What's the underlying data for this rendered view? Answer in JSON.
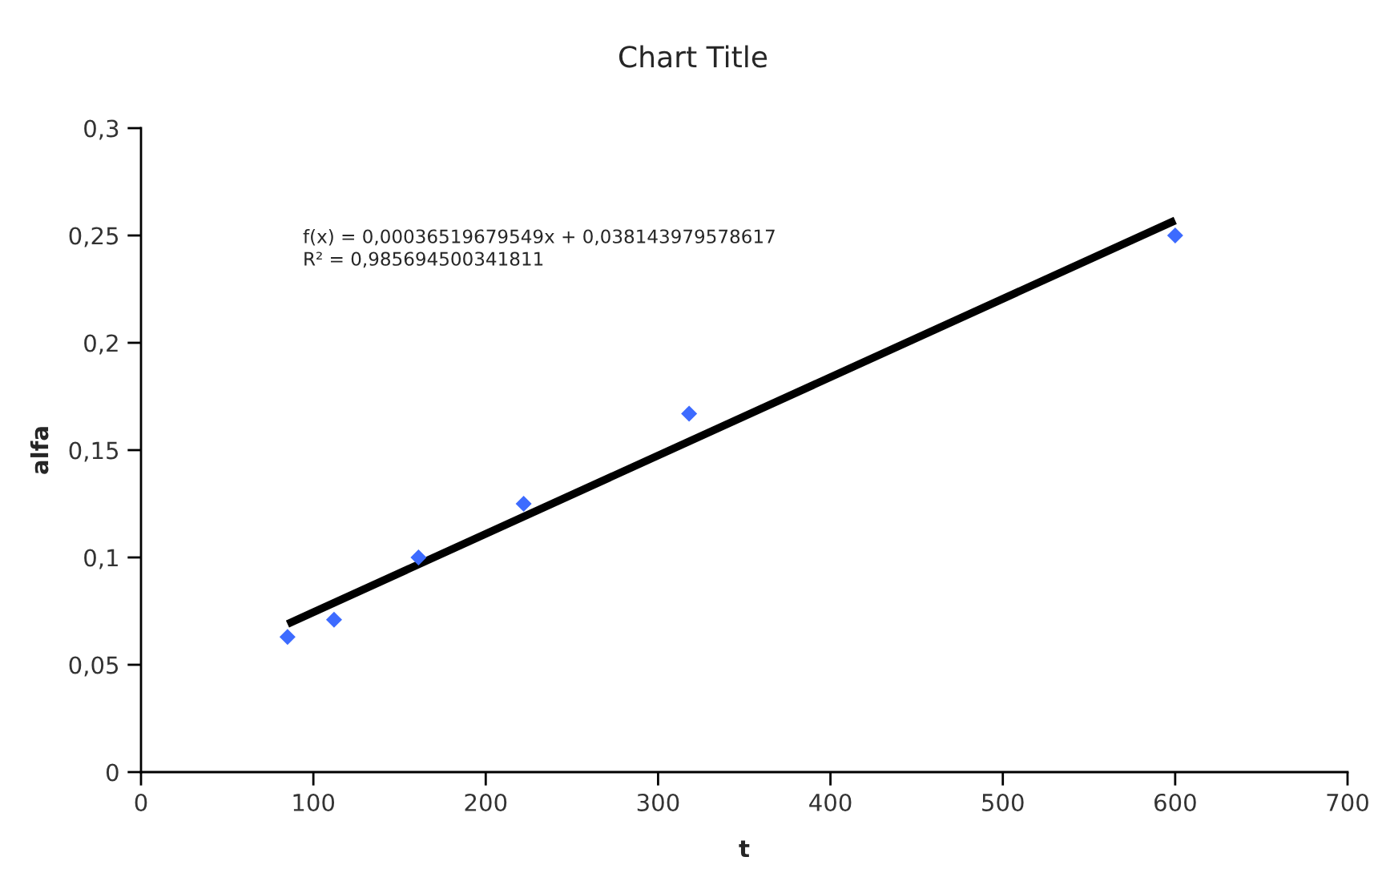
{
  "chart_data": {
    "type": "scatter",
    "title": "Chart Title",
    "xlabel": "t",
    "ylabel": "alfa",
    "annotations": [
      "f(x) = 0,00036519679549x + 0,038143979578617",
      "R² = 0,985694500341811"
    ],
    "series": [
      {
        "color": "#3d6bff",
        "marker": "diamond",
        "x": [
          85,
          112,
          161,
          222,
          318,
          600
        ],
        "values": [
          0.063,
          0.071,
          0.1,
          0.125,
          0.167,
          0.25
        ]
      },
      {
        "type": "line",
        "color": "#000000",
        "x": [
          85,
          600
        ],
        "values": [
          0.069,
          0.257
        ]
      }
    ],
    "xlim": [
      0,
      700
    ],
    "xticks": [
      0,
      100,
      200,
      300,
      400,
      500,
      600,
      700
    ],
    "ylim": [
      0,
      0.3
    ],
    "yticks": [
      {
        "value": 0,
        "label": "0"
      },
      {
        "value": 0.05,
        "label": "0,05"
      },
      {
        "value": 0.1,
        "label": "0,1"
      },
      {
        "value": 0.15,
        "label": "0,15"
      },
      {
        "value": 0.2,
        "label": "0,2"
      },
      {
        "value": 0.25,
        "label": "0,25"
      },
      {
        "value": 0.3,
        "label": "0,3"
      }
    ],
    "grid": false
  }
}
